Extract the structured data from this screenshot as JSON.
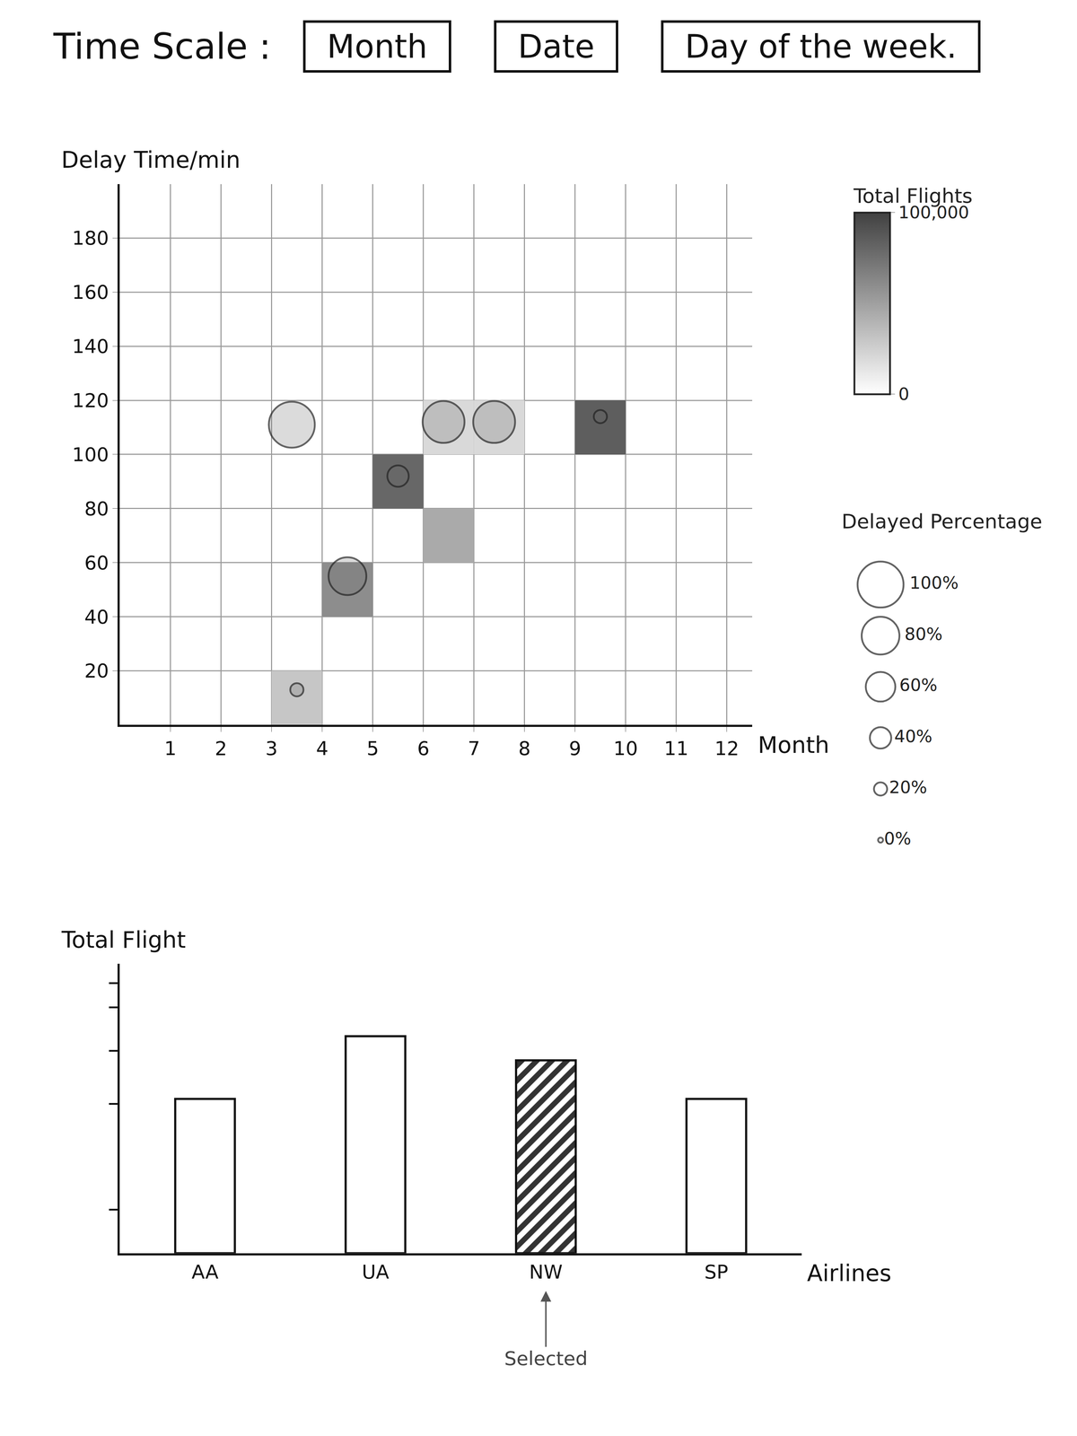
{
  "controls": {
    "label": "Time Scale :",
    "buttons": [
      "Month",
      "Date",
      "Day of the week."
    ]
  },
  "chart_data": [
    {
      "type": "scatter",
      "x_label": "Month",
      "y_label": "Delay Time/min",
      "xlim": [
        0,
        12.5
      ],
      "xticks": [
        1,
        2,
        3,
        4,
        5,
        6,
        7,
        8,
        9,
        10,
        11,
        12
      ],
      "ylim": [
        0,
        200
      ],
      "yticks": [
        20,
        40,
        60,
        80,
        100,
        120,
        140,
        160,
        180
      ],
      "grid": true,
      "x": [
        3.4,
        4.5,
        5.5,
        6.4,
        7.4,
        9.5,
        3.5
      ],
      "y": [
        111,
        55,
        92,
        112,
        112,
        114,
        13
      ],
      "delayed_percentage": [
        100,
        80,
        40,
        90,
        90,
        20,
        20
      ],
      "cells": [
        {
          "x": [
            3,
            4
          ],
          "y": [
            0,
            20
          ],
          "total_flights": 30000
        },
        {
          "x": [
            4,
            5
          ],
          "y": [
            40,
            60
          ],
          "total_flights": 60000
        },
        {
          "x": [
            5,
            6
          ],
          "y": [
            80,
            100
          ],
          "total_flights": 80000
        },
        {
          "x": [
            6,
            7
          ],
          "y": [
            60,
            80
          ],
          "total_flights": 45000
        },
        {
          "x": [
            6,
            7
          ],
          "y": [
            100,
            120
          ],
          "total_flights": 20000
        },
        {
          "x": [
            7,
            8
          ],
          "y": [
            100,
            120
          ],
          "total_flights": 20000
        },
        {
          "x": [
            9,
            10
          ],
          "y": [
            100,
            120
          ],
          "total_flights": 85000
        }
      ],
      "colorbar": {
        "title": "Total Flights",
        "range": [
          0,
          100000
        ],
        "ticks": [
          0,
          {
            "value": 100000,
            "label": "100,000"
          }
        ]
      },
      "size_legend": {
        "title": "Delayed Percentage",
        "values": [
          100,
          80,
          60,
          40,
          20,
          0
        ],
        "labels": [
          "100%",
          "80%",
          "60%",
          "40%",
          "20%",
          "0%"
        ]
      }
    },
    {
      "type": "bar",
      "x_label": "Airlines",
      "y_label": "Total Flight",
      "categories": [
        "AA",
        "UA",
        "NW",
        "SP"
      ],
      "values": [
        160,
        225,
        200,
        160
      ],
      "colors": [
        "#ffffff",
        "#ffffff",
        "#333333",
        "#ffffff"
      ],
      "ylim": [
        0,
        300
      ],
      "yticks": [
        45,
        155,
        210,
        255,
        280
      ],
      "tick_labels": "x",
      "annotations": [
        {
          "text": "Selected",
          "category": "NW"
        }
      ]
    }
  ]
}
